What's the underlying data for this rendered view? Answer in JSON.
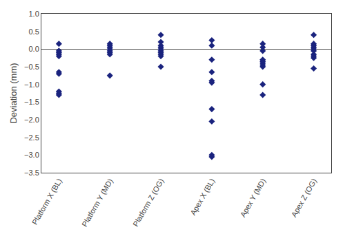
{
  "chart_data": {
    "type": "strip",
    "categories": [
      "Platform X (BL)",
      "Platform Y (MD)",
      "Platform Z (OG)",
      "Apex X (BL)",
      "Apex Y (MD)",
      "Apex Z (OG)"
    ],
    "values": [
      [
        0.15,
        -0.05,
        -0.1,
        -0.15,
        -0.2,
        -0.65,
        -0.7,
        -1.2,
        -1.25,
        -1.3
      ],
      [
        0.15,
        0.1,
        0.05,
        0.0,
        -0.05,
        -0.1,
        -0.15,
        -0.75
      ],
      [
        0.4,
        0.2,
        0.1,
        0.05,
        0.0,
        -0.05,
        -0.1,
        -0.15,
        -0.2,
        -0.5
      ],
      [
        0.25,
        0.1,
        -0.3,
        -0.65,
        -0.9,
        -0.95,
        -1.7,
        -2.05,
        -3.0,
        -3.05
      ],
      [
        0.15,
        0.05,
        -0.05,
        -0.3,
        -0.35,
        -0.4,
        -0.45,
        -0.5,
        -1.0,
        -1.3
      ],
      [
        0.4,
        0.15,
        0.1,
        0.05,
        0.0,
        -0.05,
        -0.15,
        -0.2,
        -0.25,
        -0.55
      ]
    ],
    "color": "#1a237e",
    "marker": "diamond",
    "ylabel": "Deviation (mm)",
    "ylim": [
      -3.5,
      1.0
    ],
    "yticks": [
      {
        "value": 1.0,
        "label": "1.0"
      },
      {
        "value": 0.5,
        "label": "0.5"
      },
      {
        "value": 0,
        "label": "0.0"
      },
      {
        "value": -0.5,
        "label": "−0.5"
      },
      {
        "value": -1.0,
        "label": "−1.0"
      },
      {
        "value": -1.5,
        "label": "−1.5"
      },
      {
        "value": -2.0,
        "label": "−2.0"
      },
      {
        "value": -2.5,
        "label": "−2.5"
      },
      {
        "value": -3.0,
        "label": "−3.0"
      },
      {
        "value": -3.5,
        "label": "−3.5"
      }
    ],
    "grid": false
  }
}
